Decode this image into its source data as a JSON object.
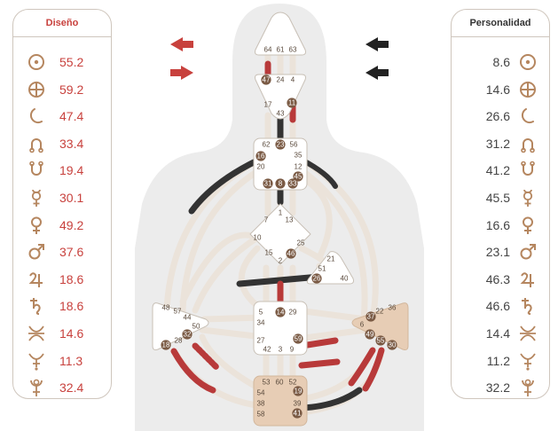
{
  "design": {
    "title": "Diseño",
    "accent": "#c8413d",
    "rows": [
      {
        "planet": "sun-icon",
        "value": "55.2"
      },
      {
        "planet": "earth-icon",
        "value": "59.2"
      },
      {
        "planet": "moon-icon",
        "value": "47.4"
      },
      {
        "planet": "north-node-icon",
        "value": "33.4"
      },
      {
        "planet": "south-node-icon",
        "value": "19.4"
      },
      {
        "planet": "mercury-icon",
        "value": "30.1"
      },
      {
        "planet": "venus-icon",
        "value": "49.2"
      },
      {
        "planet": "mars-icon",
        "value": "37.6"
      },
      {
        "planet": "jupiter-icon",
        "value": "18.6"
      },
      {
        "planet": "saturn-icon",
        "value": "18.6"
      },
      {
        "planet": "neptune-icon",
        "value": "14.6"
      },
      {
        "planet": "uranus-icon",
        "value": "11.3"
      },
      {
        "planet": "pluto-icon",
        "value": "32.4"
      }
    ]
  },
  "personality": {
    "title": "Personalidad",
    "rows": [
      {
        "planet": "sun-icon",
        "value": "8.6"
      },
      {
        "planet": "earth-icon",
        "value": "14.6"
      },
      {
        "planet": "moon-icon",
        "value": "26.6"
      },
      {
        "planet": "north-node-icon",
        "value": "31.2"
      },
      {
        "planet": "south-node-icon",
        "value": "41.2"
      },
      {
        "planet": "mercury-icon",
        "value": "45.5"
      },
      {
        "planet": "venus-icon",
        "value": "16.6"
      },
      {
        "planet": "mars-icon",
        "value": "23.1"
      },
      {
        "planet": "jupiter-icon",
        "value": "46.3"
      },
      {
        "planet": "saturn-icon",
        "value": "46.6"
      },
      {
        "planet": "neptune-icon",
        "value": "14.4"
      },
      {
        "planet": "uranus-icon",
        "value": "11.2"
      },
      {
        "planet": "pluto-icon",
        "value": "32.2"
      }
    ]
  },
  "colors": {
    "glyph": "#b5865f",
    "design_channel": "#b83a3a",
    "personality_channel": "#333333",
    "inactive_channel": "#ebe3da",
    "defined_center": "#e7cdb5",
    "open_center": "#ffffff",
    "silhouette": "#ececec"
  },
  "arrows": {
    "left_top": "left-arrow",
    "left_bottom": "right-arrow",
    "right_top": "left-arrow",
    "right_bottom": "left-arrow"
  },
  "centers": {
    "head": {
      "gates": [
        "64",
        "61",
        "63"
      ],
      "defined": false
    },
    "ajna": {
      "gates": [
        "47",
        "24",
        "4",
        "17",
        "43",
        "11"
      ],
      "defined": false
    },
    "throat": {
      "gates": [
        "62",
        "23",
        "56",
        "16",
        "35",
        "20",
        "12",
        "45",
        "31",
        "8",
        "33"
      ],
      "defined": false
    },
    "g": {
      "gates": [
        "1",
        "7",
        "13",
        "10",
        "25",
        "15",
        "46",
        "2"
      ],
      "defined": false
    },
    "heart": {
      "gates": [
        "21",
        "51",
        "26",
        "40"
      ],
      "defined": false
    },
    "spleen": {
      "gates": [
        "48",
        "57",
        "44",
        "50",
        "32",
        "28",
        "18"
      ],
      "defined": false
    },
    "sacral": {
      "gates": [
        "5",
        "14",
        "29",
        "34",
        "27",
        "59",
        "42",
        "3",
        "9"
      ],
      "defined": false
    },
    "solar_plexus": {
      "gates": [
        "36",
        "22",
        "37",
        "6",
        "49",
        "55",
        "30"
      ],
      "defined": true
    },
    "root": {
      "gates": [
        "53",
        "60",
        "52",
        "54",
        "19",
        "38",
        "39",
        "58",
        "41"
      ],
      "defined": true
    }
  }
}
